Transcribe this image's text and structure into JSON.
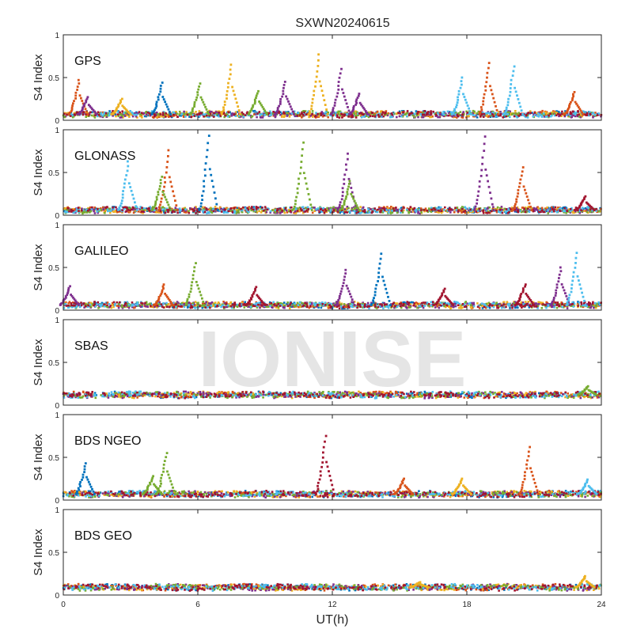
{
  "figure": {
    "title": "SXWN20240615",
    "watermark": "IONISE",
    "xlabel": "UT(h)",
    "xticks": [
      "0",
      "6",
      "12",
      "18",
      "24"
    ]
  },
  "chart_data": {
    "type": "scatter",
    "title": "SXWN20240615",
    "xlabel": "UT(h)",
    "ylabel": "S4 Index",
    "xlim": [
      0,
      24
    ],
    "ylim": [
      0,
      1
    ],
    "xticks": [
      0,
      6,
      12,
      18,
      24
    ],
    "yticks": [
      0,
      0.5,
      1
    ],
    "grid": false,
    "series_colors": [
      "#0072BD",
      "#D95319",
      "#EDB120",
      "#7E2F8E",
      "#77AC30",
      "#4DBEEE",
      "#A2142F"
    ],
    "panels": [
      {
        "name": "GPS",
        "ylabel": "S4 Index",
        "baseline": 0.07,
        "peaks": [
          {
            "x": 0.7,
            "y": 0.47,
            "color": "#D95319"
          },
          {
            "x": 1.1,
            "y": 0.27,
            "color": "#7E2F8E"
          },
          {
            "x": 2.6,
            "y": 0.25,
            "color": "#EDB120"
          },
          {
            "x": 4.4,
            "y": 0.44,
            "color": "#0072BD"
          },
          {
            "x": 6.1,
            "y": 0.43,
            "color": "#77AC30"
          },
          {
            "x": 7.5,
            "y": 0.65,
            "color": "#EDB120"
          },
          {
            "x": 8.7,
            "y": 0.34,
            "color": "#77AC30"
          },
          {
            "x": 9.9,
            "y": 0.45,
            "color": "#7E2F8E"
          },
          {
            "x": 11.4,
            "y": 0.77,
            "color": "#EDB120"
          },
          {
            "x": 12.4,
            "y": 0.6,
            "color": "#7E2F8E"
          },
          {
            "x": 13.2,
            "y": 0.31,
            "color": "#7E2F8E"
          },
          {
            "x": 17.8,
            "y": 0.5,
            "color": "#4DBEEE"
          },
          {
            "x": 19.0,
            "y": 0.67,
            "color": "#D95319"
          },
          {
            "x": 20.1,
            "y": 0.63,
            "color": "#4DBEEE"
          },
          {
            "x": 22.8,
            "y": 0.33,
            "color": "#D95319"
          }
        ]
      },
      {
        "name": "GLONASS",
        "ylabel": "S4 Index",
        "baseline": 0.06,
        "peaks": [
          {
            "x": 2.9,
            "y": 0.63,
            "color": "#4DBEEE"
          },
          {
            "x": 4.7,
            "y": 0.76,
            "color": "#D95319"
          },
          {
            "x": 4.4,
            "y": 0.45,
            "color": "#77AC30"
          },
          {
            "x": 6.5,
            "y": 0.93,
            "color": "#0072BD"
          },
          {
            "x": 10.7,
            "y": 0.85,
            "color": "#77AC30"
          },
          {
            "x": 12.7,
            "y": 0.72,
            "color": "#7E2F8E"
          },
          {
            "x": 12.8,
            "y": 0.4,
            "color": "#77AC30"
          },
          {
            "x": 18.8,
            "y": 0.92,
            "color": "#7E2F8E"
          },
          {
            "x": 20.5,
            "y": 0.56,
            "color": "#D95319"
          },
          {
            "x": 23.3,
            "y": 0.22,
            "color": "#A2142F"
          }
        ]
      },
      {
        "name": "GALILEO",
        "ylabel": "S4 Index",
        "baseline": 0.06,
        "peaks": [
          {
            "x": 0.3,
            "y": 0.28,
            "color": "#7E2F8E"
          },
          {
            "x": 4.5,
            "y": 0.3,
            "color": "#D95319"
          },
          {
            "x": 5.9,
            "y": 0.55,
            "color": "#77AC30"
          },
          {
            "x": 8.6,
            "y": 0.27,
            "color": "#A2142F"
          },
          {
            "x": 12.6,
            "y": 0.47,
            "color": "#7E2F8E"
          },
          {
            "x": 14.2,
            "y": 0.66,
            "color": "#0072BD"
          },
          {
            "x": 17.0,
            "y": 0.25,
            "color": "#A2142F"
          },
          {
            "x": 20.6,
            "y": 0.3,
            "color": "#A2142F"
          },
          {
            "x": 22.2,
            "y": 0.5,
            "color": "#7E2F8E"
          },
          {
            "x": 22.9,
            "y": 0.67,
            "color": "#4DBEEE"
          }
        ]
      },
      {
        "name": "SBAS",
        "ylabel": "S4 Index",
        "baseline": 0.12,
        "peaks": [
          {
            "x": 23.4,
            "y": 0.22,
            "color": "#77AC30"
          }
        ]
      },
      {
        "name": "BDS NGEO",
        "ylabel": "S4 Index",
        "baseline": 0.07,
        "peaks": [
          {
            "x": 1.0,
            "y": 0.43,
            "color": "#0072BD"
          },
          {
            "x": 4.0,
            "y": 0.28,
            "color": "#77AC30"
          },
          {
            "x": 4.6,
            "y": 0.55,
            "color": "#77AC30"
          },
          {
            "x": 11.7,
            "y": 0.75,
            "color": "#A2142F"
          },
          {
            "x": 15.2,
            "y": 0.25,
            "color": "#D95319"
          },
          {
            "x": 17.8,
            "y": 0.25,
            "color": "#EDB120"
          },
          {
            "x": 20.8,
            "y": 0.62,
            "color": "#D95319"
          },
          {
            "x": 23.4,
            "y": 0.24,
            "color": "#4DBEEE"
          }
        ]
      },
      {
        "name": "BDS GEO",
        "ylabel": "S4 Index",
        "baseline": 0.09,
        "peaks": [
          {
            "x": 15.9,
            "y": 0.15,
            "color": "#EDB120"
          },
          {
            "x": 23.3,
            "y": 0.22,
            "color": "#EDB120"
          }
        ]
      }
    ]
  }
}
